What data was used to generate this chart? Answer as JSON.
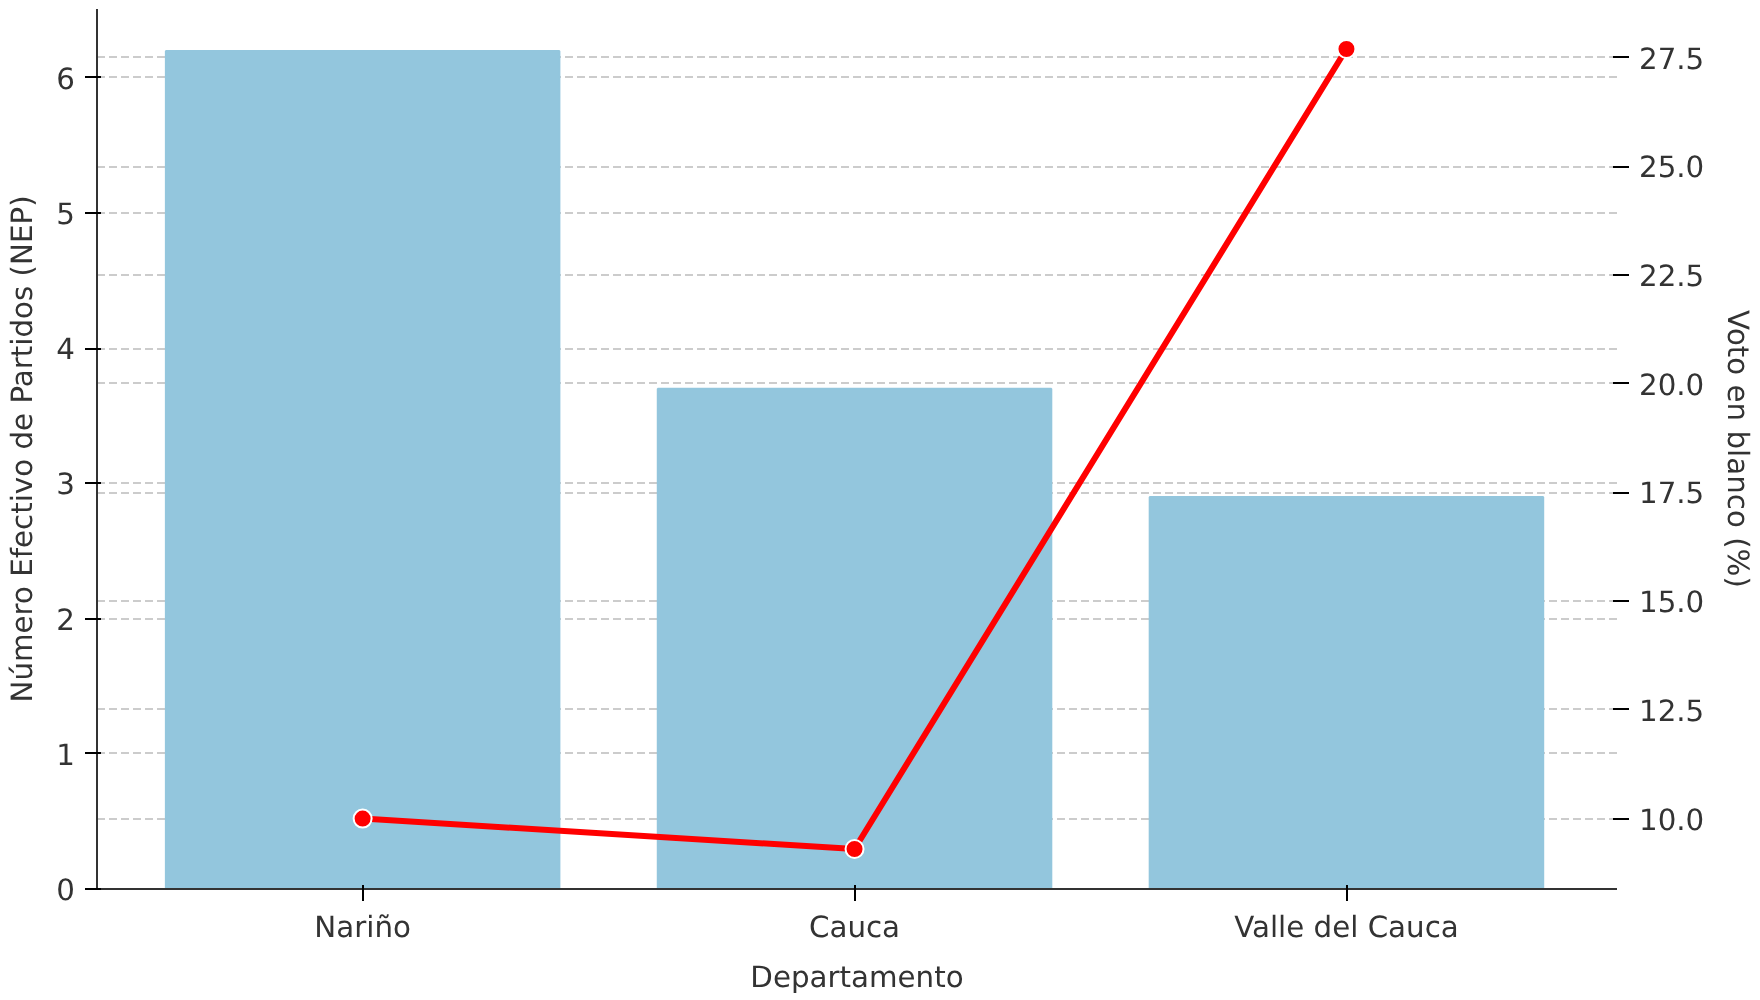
{
  "chart_data": {
    "type": "bar",
    "xlabel": "Departamento",
    "ylabel": "Número Efectivo de Partidos (NEP)",
    "y2label": "Voto en blanco (%)",
    "categories": [
      "Nariño",
      "Cauca",
      "Valle del Cauca"
    ],
    "series": [
      {
        "color": "#93c6dd",
        "values": [
          6.2,
          3.7,
          2.9
        ]
      },
      {
        "type": "line",
        "axis": "y2",
        "color": "#ff0000",
        "values": [
          10.0,
          9.3,
          27.7
        ],
        "marker": "circle",
        "line_style": "solid"
      }
    ],
    "ylim": [
      0,
      6.51
    ],
    "yticks": [
      0,
      1,
      2,
      3,
      4,
      5,
      6
    ],
    "y2lim": [
      8.38,
      28.62
    ],
    "y2ticks": [
      {
        "value": 10,
        "label": "10.0"
      },
      {
        "value": 12.5,
        "label": "12.5"
      },
      {
        "value": 15,
        "label": "15.0"
      },
      {
        "value": 17.5,
        "label": "17.5"
      },
      {
        "value": 20,
        "label": "20.0"
      },
      {
        "value": 22.5,
        "label": "22.5"
      },
      {
        "value": 25,
        "label": "25.0"
      },
      {
        "value": 27.5,
        "label": "27.5"
      }
    ],
    "grid": "y"
  }
}
